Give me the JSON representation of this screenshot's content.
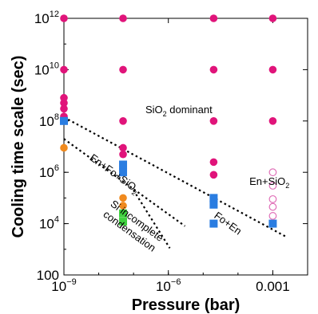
{
  "chart_data": {
    "type": "scatter",
    "xscale": "log",
    "yscale": "log",
    "xlim": [
      1e-09,
      0.01
    ],
    "ylim": [
      100,
      1000000000000.0
    ],
    "xlabel": "Pressure (bar)",
    "ylabel": "Cooling time scale (sec)",
    "xticks": [
      {
        "value": 1e-09,
        "base": "10",
        "exp": "−9"
      },
      {
        "value": 1e-06,
        "base": "10",
        "exp": "−6"
      },
      {
        "value": 0.001,
        "text": "0.001"
      }
    ],
    "yticks": [
      {
        "value": 100,
        "text": "100"
      },
      {
        "value": 10000.0,
        "base": "10",
        "exp": "4"
      },
      {
        "value": 1000000.0,
        "base": "10",
        "exp": "6"
      },
      {
        "value": 100000000.0,
        "base": "10",
        "exp": "8"
      },
      {
        "value": 10000000000.0,
        "base": "10",
        "exp": "10"
      },
      {
        "value": 1000000000000.0,
        "base": "10",
        "exp": "12"
      }
    ],
    "colors": {
      "sio2": "#e0147a",
      "fo_en": "#2a7de1",
      "en_fo_sio2": "#f08a1e",
      "si_incomplete": "#3fd13f",
      "en_sio2": "#e070b8"
    },
    "series": [
      {
        "key": "sio2",
        "marker": "circle",
        "color": "#e0147a",
        "points": [
          [
            1e-09,
            1000000000000.0
          ],
          [
            1e-09,
            10000000000.0
          ],
          [
            1e-09,
            800000000.0
          ],
          [
            1e-09,
            500000000.0
          ],
          [
            1e-09,
            300000000.0
          ],
          [
            1e-09,
            150000000.0
          ],
          [
            5e-08,
            1000000000000.0
          ],
          [
            5e-08,
            10000000000.0
          ],
          [
            5e-08,
            100000000.0
          ],
          [
            5e-08,
            9000000.0
          ],
          [
            5e-08,
            5000000.0
          ],
          [
            2e-05,
            1000000000000.0
          ],
          [
            2e-05,
            10000000000.0
          ],
          [
            2e-05,
            100000000.0
          ],
          [
            2e-05,
            2500000.0
          ],
          [
            2e-05,
            800000.0
          ],
          [
            0.001,
            1000000000000.0
          ],
          [
            0.001,
            10000000000.0
          ],
          [
            0.001,
            100000000.0
          ]
        ]
      },
      {
        "key": "fo_en",
        "marker": "square",
        "color": "#2a7de1",
        "points": [
          [
            1e-09,
            100000000.0
          ],
          [
            5e-08,
            2000000.0
          ],
          [
            5e-08,
            1000000.0
          ],
          [
            2e-05,
            100000.0
          ],
          [
            2e-05,
            55000.0
          ],
          [
            2e-05,
            10000.0
          ],
          [
            0.001,
            10000.0
          ]
        ]
      },
      {
        "key": "en_fo_sio2",
        "marker": "circle",
        "color": "#f08a1e",
        "points": [
          [
            1e-09,
            9000000.0
          ],
          [
            5e-08,
            100000.0
          ],
          [
            5e-08,
            50000.0
          ]
        ]
      },
      {
        "key": "si_incomplete",
        "marker": "square",
        "color": "#3fd13f",
        "points": [
          [
            5e-08,
            25000.0
          ],
          [
            5e-08,
            12000.0
          ]
        ]
      },
      {
        "key": "en_sio2",
        "marker": "open-circle",
        "color": "#e070b8",
        "points": [
          [
            0.001,
            1000000.0
          ],
          [
            0.001,
            300000.0
          ],
          [
            0.001,
            90000.0
          ],
          [
            0.001,
            45000.0
          ],
          [
            0.001,
            20000.0
          ]
        ]
      }
    ],
    "boundaries": [
      {
        "points": [
          [
            1e-09,
            140000000.0
          ],
          [
            0.0025,
            3000.0
          ]
        ]
      },
      {
        "points": [
          [
            1e-09,
            20000000.0
          ],
          [
            3e-06,
            8000.0
          ]
        ]
      },
      {
        "points": [
          [
            1e-07,
            200000.0
          ],
          [
            1.1e-06,
            1100.0
          ]
        ]
      }
    ],
    "annotations": [
      {
        "id": "sio2-dominant",
        "parts": [
          "SiO",
          "2",
          "  dominant"
        ],
        "at": [
          2e-06,
          200000000.0
        ],
        "rotate": 0
      },
      {
        "id": "en-fo-sio2",
        "parts": [
          "En+Fo+SiO",
          "2"
        ],
        "at": [
          2.5e-08,
          700000.0
        ],
        "rotate": 36
      },
      {
        "id": "si-incomplete",
        "lines": [
          "Si incomplete",
          "condensation"
        ],
        "at": [
          1.1e-07,
          10000.0
        ],
        "rotate": 36
      },
      {
        "id": "fo-en",
        "parts": [
          "Fo+En"
        ],
        "at": [
          4.5e-05,
          8000.0
        ],
        "rotate": 36
      },
      {
        "id": "en-sio2",
        "parts": [
          "En+SiO",
          "2"
        ],
        "at": [
          0.0008,
          320000.0
        ],
        "rotate": 0
      }
    ]
  }
}
